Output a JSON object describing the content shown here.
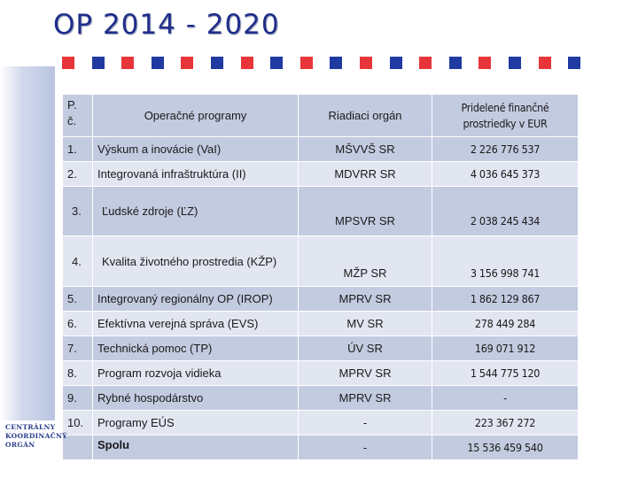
{
  "slide": {
    "title": "OP 2014 - 2020",
    "logo_lines": [
      "Centrálny",
      "Koordinačný",
      "Orgán"
    ],
    "colors": {
      "red": "#e8353a",
      "blue": "#1f3aa0",
      "header_bg": "#c3cbe0",
      "row_light": "#e2e6f1"
    }
  },
  "table": {
    "headers": {
      "num": "P. č.",
      "program": "Operačné programy",
      "org": "Riadiaci orgán",
      "funds": "Pridelené finančné prostriedky v EUR"
    },
    "rows": [
      {
        "num": "1.",
        "program": "Výskum a inovácie (VaI)",
        "org": "MŠVVŠ SR",
        "funds": "2 226 776 537"
      },
      {
        "num": "2.",
        "program": "Integrovaná infraštruktúra (II)",
        "org": "MDVRR SR",
        "funds": "4 036 645 373"
      },
      {
        "num": "3.",
        "program": "Ľudské zdroje (ĽZ)",
        "org": "MPSVR SR",
        "funds": "2 038 245 434"
      },
      {
        "num": "4.",
        "program": "Kvalita životného prostredia (KŽP)",
        "org": "MŽP SR",
        "funds": "3 156 998 741"
      },
      {
        "num": "5.",
        "program": "Integrovaný regionálny OP (IROP)",
        "org": "MPRV SR",
        "funds": "1 862 129 867"
      },
      {
        "num": "6.",
        "program": "Efektívna verejná správa (EVS)",
        "org": "MV SR",
        "funds": "278 449 284"
      },
      {
        "num": "7.",
        "program": "Technická pomoc (TP)",
        "org": "ÚV SR",
        "funds": "169 071 912"
      },
      {
        "num": "8.",
        "program": "Program rozvoja vidieka",
        "org": "MPRV  SR",
        "funds": "1 544 775 120"
      },
      {
        "num": "9.",
        "program": "Rybné hospodárstvo",
        "org": "MPRV  SR",
        "funds": "-"
      },
      {
        "num": "10.",
        "program": "Programy EÚS",
        "org": "-",
        "funds": "223 367 272"
      }
    ],
    "total": {
      "label": "Spolu",
      "org": "-",
      "funds": "15 536 459 540"
    }
  }
}
